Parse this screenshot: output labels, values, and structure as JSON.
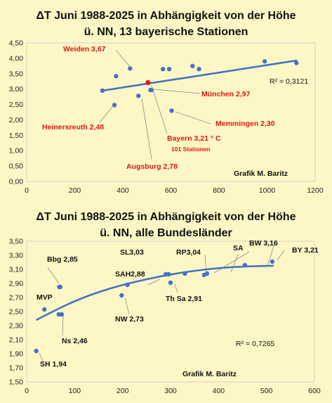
{
  "chart_data": [
    {
      "type": "scatter",
      "title_line1": "ΔT Juni 1988-2025 in Abhängigkeit von der Höhe",
      "title_line2": "ü. NN, 13 bayerische Stationen",
      "xlim": [
        0,
        1200
      ],
      "ylim": [
        0,
        4.5
      ],
      "xticks": [
        "0",
        "200",
        "400",
        "600",
        "800",
        "1000",
        "1200"
      ],
      "yticks": [
        "0,00",
        "0,50",
        "1,00",
        "1,50",
        "2,00",
        "2,50",
        "3,00",
        "3,50",
        "4,00",
        "4,50"
      ],
      "trendline": {
        "type": "linear",
        "x": [
          315,
          1125
        ],
        "y": [
          2.95,
          3.93
        ]
      },
      "r2": "R² = 0,3121",
      "credit": "Grafik M. Baritz",
      "points": [
        {
          "x": 315,
          "y": 2.95
        },
        {
          "x": 365,
          "y": 2.48
        },
        {
          "x": 372,
          "y": 3.42
        },
        {
          "x": 430,
          "y": 3.67
        },
        {
          "x": 465,
          "y": 2.78
        },
        {
          "x": 505,
          "y": 3.21
        },
        {
          "x": 515,
          "y": 2.97
        },
        {
          "x": 520,
          "y": 2.97
        },
        {
          "x": 567,
          "y": 3.65
        },
        {
          "x": 593,
          "y": 3.65
        },
        {
          "x": 603,
          "y": 2.3
        },
        {
          "x": 690,
          "y": 3.75
        },
        {
          "x": 717,
          "y": 3.65
        },
        {
          "x": 990,
          "y": 3.9
        },
        {
          "x": 1122,
          "y": 3.85
        }
      ],
      "highlight": {
        "x": 505,
        "y": 3.21
      },
      "annotations": [
        {
          "text": "Weiden 3,67"
        },
        {
          "text": "München 2,97"
        },
        {
          "text": "Heinersreuth 2,48"
        },
        {
          "text": "Memmingen 2,30"
        },
        {
          "text": "Bayern 3,21 ° C"
        },
        {
          "text": "101  Stationen"
        },
        {
          "text": "Augsburg 2,78"
        }
      ]
    },
    {
      "type": "scatter",
      "title_line1": "ΔT Juni 1988-2025 in Abhängigkeit von der Höhe",
      "title_line2": "ü. NN, alle Bundesländer",
      "xlim": [
        0,
        600
      ],
      "ylim": [
        1.5,
        3.5
      ],
      "xticks": [
        "0",
        "100",
        "200",
        "300",
        "400",
        "500",
        "600"
      ],
      "yticks": [
        "1,50",
        "1,70",
        "1,90",
        "2,10",
        "2,30",
        "2,50",
        "2,70",
        "2,90",
        "3,10",
        "3,30",
        "3,50"
      ],
      "trendline": {
        "type": "polynomial",
        "x": [
          20,
          60,
          100,
          150,
          200,
          250,
          300,
          350,
          400,
          450,
          500,
          515
        ],
        "y": [
          2.38,
          2.52,
          2.65,
          2.78,
          2.88,
          2.96,
          3.03,
          3.08,
          3.12,
          3.14,
          3.15,
          3.15
        ]
      },
      "r2": "R² = 0,7265",
      "credit": "Grafik M. Baritz",
      "points": [
        {
          "x": 20,
          "y": 1.94,
          "label": "SH 1,94"
        },
        {
          "x": 37,
          "y": 2.53,
          "label": "MVP"
        },
        {
          "x": 67,
          "y": 2.46
        },
        {
          "x": 73,
          "y": 2.46,
          "label": "Ns 2,46"
        },
        {
          "x": 68,
          "y": 2.85,
          "label": "Bbg 2,85"
        },
        {
          "x": 70,
          "y": 2.85
        },
        {
          "x": 198,
          "y": 2.73,
          "label": "NW 2,73"
        },
        {
          "x": 210,
          "y": 2.88,
          "label": "SAH2,88"
        },
        {
          "x": 290,
          "y": 3.03,
          "label": "SL3,03"
        },
        {
          "x": 296,
          "y": 3.03
        },
        {
          "x": 300,
          "y": 2.91,
          "label": "Th Sa 2,91"
        },
        {
          "x": 330,
          "y": 3.04,
          "label": "RP3,04"
        },
        {
          "x": 370,
          "y": 3.02
        },
        {
          "x": 376,
          "y": 3.04,
          "label": "SA"
        },
        {
          "x": 455,
          "y": 3.16,
          "label": "BW 3,16"
        },
        {
          "x": 512,
          "y": 3.21,
          "label": "BY 3,21"
        }
      ]
    }
  ]
}
